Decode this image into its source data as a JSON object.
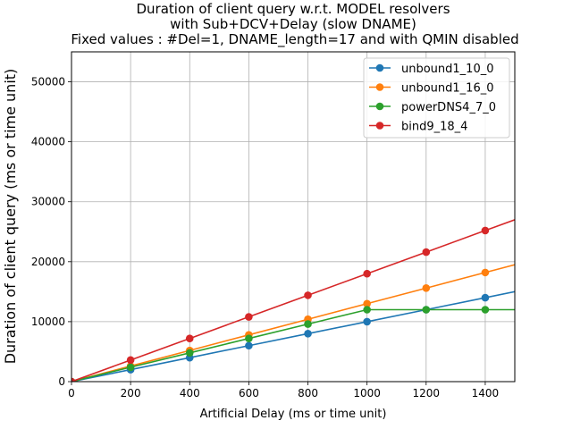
{
  "chart_data": {
    "type": "line",
    "title_lines": [
      "Duration of client query w.r.t. MODEL resolvers",
      "with Sub+DCV+Delay (slow DNAME)",
      "Fixed values : #Del=1, DNAME_length=17 and  with QMIN disabled"
    ],
    "xlabel": "Artificial Delay (ms or time unit)",
    "ylabel": "Duration of client query (ms or time unit)",
    "xlim": [
      0,
      1500
    ],
    "ylim": [
      0,
      55000
    ],
    "xticks": [
      0,
      200,
      400,
      600,
      800,
      1000,
      1200,
      1400
    ],
    "yticks": [
      0,
      10000,
      20000,
      30000,
      40000,
      50000
    ],
    "grid": true,
    "legend_position": "top-right",
    "series": [
      {
        "name": "unbound1_10_0",
        "color": "#1f77b4",
        "x": [
          0,
          200,
          400,
          600,
          800,
          1000,
          1200,
          1400,
          1600
        ],
        "y": [
          0,
          2000,
          4000,
          6000,
          8000,
          10000,
          12000,
          14000,
          16000
        ]
      },
      {
        "name": "unbound1_16_0",
        "color": "#ff7f0e",
        "x": [
          0,
          200,
          400,
          600,
          800,
          1000,
          1200,
          1400,
          1600
        ],
        "y": [
          0,
          2600,
          5200,
          7800,
          10400,
          13000,
          15600,
          18200,
          20800
        ]
      },
      {
        "name": "powerDNS4_7_0",
        "color": "#2ca02c",
        "x": [
          0,
          200,
          400,
          600,
          800,
          1000,
          1200,
          1400,
          1600
        ],
        "y": [
          0,
          2400,
          4800,
          7200,
          9600,
          12000,
          12000,
          12000,
          12000
        ]
      },
      {
        "name": "bind9_18_4",
        "color": "#d62728",
        "x": [
          0,
          200,
          400,
          600,
          800,
          1000,
          1200,
          1400,
          1600
        ],
        "y": [
          0,
          3600,
          7200,
          10800,
          14400,
          18000,
          21600,
          25200,
          28800
        ]
      }
    ]
  }
}
